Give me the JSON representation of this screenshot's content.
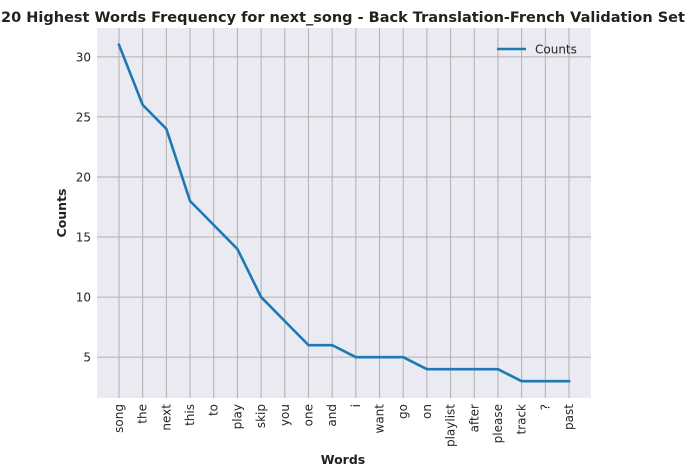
{
  "chart_data": {
    "type": "line",
    "title": "20 Highest Words Frequency for next_song - Back Translation-French Validation Set",
    "xlabel": "Words",
    "ylabel": "Counts",
    "categories": [
      "song",
      "the",
      "next",
      "this",
      "to",
      "play",
      "skip",
      "you",
      "one",
      "and",
      "i",
      "want",
      "go",
      "on",
      "playlist",
      "after",
      "please",
      "track",
      "?",
      "past"
    ],
    "series": [
      {
        "name": "Counts",
        "values": [
          31,
          26,
          24,
          18,
          16,
          14,
          10,
          8,
          6,
          6,
          5,
          5,
          5,
          4,
          4,
          4,
          4,
          3,
          3,
          3
        ],
        "color": "#1f77b4"
      }
    ],
    "yticks": [
      5,
      10,
      15,
      20,
      25,
      30
    ],
    "ylim": [
      1.6,
      32.4
    ],
    "grid": true,
    "legend_position": "top-right",
    "background_color": "#eaeaf2",
    "grid_color": "#b0b0b0"
  }
}
